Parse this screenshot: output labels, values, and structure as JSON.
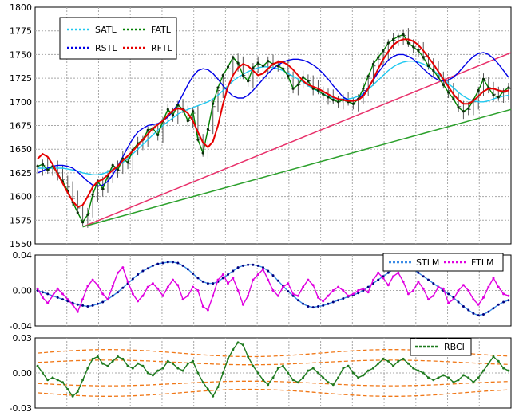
{
  "chart_data": [
    {
      "type": "line",
      "panel": "price",
      "ylim": [
        1550,
        1800
      ],
      "yticks": [
        "1800",
        "1775",
        "1750",
        "1725",
        "1700",
        "1675",
        "1650",
        "1625",
        "1600",
        "1575",
        "1550"
      ],
      "grid": true,
      "legend": "top-left",
      "xrange": [
        0,
        100
      ],
      "close": [
        1630,
        1633,
        1628,
        1632,
        1625,
        1618,
        1610,
        1598,
        1588,
        1575,
        1582,
        1600,
        1615,
        1608,
        1620,
        1632,
        1628,
        1640,
        1635,
        1648,
        1655,
        1660,
        1668,
        1672,
        1665,
        1678,
        1690,
        1685,
        1695,
        1692,
        1680,
        1688,
        1662,
        1648,
        1670,
        1695,
        1712,
        1725,
        1735,
        1745,
        1740,
        1728,
        1722,
        1735,
        1740,
        1738,
        1742,
        1740,
        1738,
        1735,
        1728,
        1715,
        1718,
        1725,
        1722,
        1715,
        1712,
        1708,
        1705,
        1702,
        1700,
        1702,
        1700,
        1698,
        1702,
        1712,
        1725,
        1738,
        1745,
        1752,
        1760,
        1765,
        1768,
        1770,
        1762,
        1758,
        1755,
        1748,
        1740,
        1735,
        1728,
        1720,
        1712,
        1705,
        1695,
        1690,
        1692,
        1700,
        1710,
        1722,
        1715,
        1708,
        1705,
        1710,
        1714
      ],
      "series": [
        {
          "name": "SATL",
          "color": "#1ec8f0",
          "values": [
            1630,
            1630,
            1630,
            1630,
            1630,
            1630,
            1629,
            1628,
            1627,
            1625,
            1624,
            1623,
            1623,
            1624,
            1626,
            1629,
            1632,
            1636,
            1640,
            1645,
            1650,
            1655,
            1660,
            1665,
            1670,
            1675,
            1679,
            1683,
            1687,
            1690,
            1692,
            1694,
            1696,
            1698,
            1700,
            1703,
            1707,
            1712,
            1717,
            1722,
            1726,
            1729,
            1732,
            1734,
            1736,
            1737,
            1737,
            1736,
            1735,
            1733,
            1730,
            1727,
            1724,
            1721,
            1717,
            1714,
            1711,
            1708,
            1706,
            1704,
            1703,
            1703,
            1703,
            1704,
            1706,
            1709,
            1713,
            1718,
            1723,
            1728,
            1733,
            1737,
            1740,
            1742,
            1743,
            1743,
            1742,
            1740,
            1737,
            1733,
            1729,
            1724,
            1719,
            1715,
            1710,
            1706,
            1703,
            1701,
            1700,
            1700,
            1701,
            1703,
            1705,
            1706,
            1707
          ]
        },
        {
          "name": "RSTL",
          "color": "#0000e6",
          "values": [
            1625,
            1627,
            1630,
            1632,
            1633,
            1633,
            1632,
            1630,
            1626,
            1621,
            1616,
            1612,
            1611,
            1612,
            1616,
            1623,
            1632,
            1642,
            1652,
            1661,
            1668,
            1672,
            1675,
            1676,
            1677,
            1680,
            1684,
            1690,
            1698,
            1708,
            1718,
            1727,
            1733,
            1735,
            1734,
            1730,
            1724,
            1717,
            1711,
            1706,
            1704,
            1704,
            1707,
            1712,
            1718,
            1724,
            1730,
            1735,
            1739,
            1742,
            1744,
            1745,
            1745,
            1744,
            1742,
            1739,
            1735,
            1730,
            1724,
            1717,
            1711,
            1705,
            1702,
            1701,
            1703,
            1708,
            1715,
            1723,
            1731,
            1738,
            1744,
            1748,
            1750,
            1750,
            1748,
            1745,
            1740,
            1735,
            1730,
            1726,
            1723,
            1722,
            1723,
            1726,
            1731,
            1737,
            1743,
            1748,
            1751,
            1752,
            1750,
            1746,
            1740,
            1733,
            1726
          ]
        },
        {
          "name": "FATL",
          "color": "#008000",
          "values": [
            1632,
            1634,
            1628,
            1632,
            1624,
            1616,
            1606,
            1594,
            1583,
            1573,
            1581,
            1602,
            1616,
            1608,
            1622,
            1633,
            1628,
            1640,
            1636,
            1649,
            1656,
            1660,
            1670,
            1672,
            1665,
            1680,
            1692,
            1686,
            1697,
            1692,
            1680,
            1690,
            1660,
            1646,
            1671,
            1698,
            1715,
            1728,
            1737,
            1747,
            1741,
            1728,
            1722,
            1736,
            1741,
            1738,
            1743,
            1740,
            1738,
            1735,
            1727,
            1714,
            1718,
            1726,
            1722,
            1714,
            1712,
            1708,
            1705,
            1702,
            1700,
            1702,
            1700,
            1698,
            1703,
            1714,
            1727,
            1740,
            1747,
            1754,
            1762,
            1766,
            1769,
            1771,
            1762,
            1758,
            1754,
            1747,
            1738,
            1733,
            1726,
            1718,
            1710,
            1703,
            1694,
            1690,
            1693,
            1702,
            1712,
            1724,
            1715,
            1707,
            1705,
            1711,
            1715
          ]
        },
        {
          "name": "RFTL",
          "color": "#e60000",
          "values": [
            1640,
            1645,
            1642,
            1634,
            1624,
            1614,
            1604,
            1595,
            1589,
            1591,
            1600,
            1610,
            1616,
            1618,
            1623,
            1628,
            1632,
            1638,
            1643,
            1648,
            1654,
            1660,
            1666,
            1672,
            1676,
            1680,
            1686,
            1691,
            1693,
            1692,
            1688,
            1680,
            1668,
            1657,
            1652,
            1658,
            1675,
            1698,
            1716,
            1728,
            1736,
            1740,
            1738,
            1733,
            1728,
            1730,
            1735,
            1740,
            1742,
            1742,
            1739,
            1734,
            1728,
            1722,
            1718,
            1716,
            1714,
            1711,
            1708,
            1705,
            1703,
            1702,
            1701,
            1701,
            1702,
            1706,
            1714,
            1724,
            1735,
            1745,
            1753,
            1760,
            1764,
            1766,
            1766,
            1764,
            1760,
            1754,
            1747,
            1740,
            1732,
            1724,
            1716,
            1708,
            1702,
            1698,
            1698,
            1701,
            1706,
            1711,
            1714,
            1714,
            1712,
            1711,
            1712
          ]
        }
      ],
      "trendlines": [
        {
          "color": "#e8306a",
          "x": [
            10,
            100
          ],
          "y": [
            1568,
            1752
          ]
        },
        {
          "color": "#2ca02c",
          "x": [
            10,
            100
          ],
          "y": [
            1568,
            1692
          ]
        }
      ]
    },
    {
      "type": "line",
      "panel": "oscillator",
      "ylim": [
        -0.04,
        0.04
      ],
      "yticks": [
        "0.04",
        "0.00",
        "-0.04"
      ],
      "grid": true,
      "legend": "top-right",
      "xrange": [
        0,
        100
      ],
      "series": [
        {
          "name": "STLM",
          "color": "#3c8ce6",
          "values": [
            0.0,
            -0.002,
            -0.004,
            -0.006,
            -0.008,
            -0.01,
            -0.012,
            -0.014,
            -0.016,
            -0.017,
            -0.018,
            -0.017,
            -0.015,
            -0.013,
            -0.01,
            -0.006,
            -0.002,
            0.003,
            0.008,
            0.013,
            0.018,
            0.022,
            0.025,
            0.028,
            0.03,
            0.031,
            0.032,
            0.032,
            0.031,
            0.028,
            0.024,
            0.019,
            0.014,
            0.01,
            0.008,
            0.008,
            0.01,
            0.014,
            0.018,
            0.022,
            0.026,
            0.028,
            0.029,
            0.029,
            0.028,
            0.026,
            0.022,
            0.017,
            0.011,
            0.005,
            -0.001,
            -0.006,
            -0.011,
            -0.015,
            -0.018,
            -0.019,
            -0.018,
            -0.017,
            -0.015,
            -0.013,
            -0.011,
            -0.009,
            -0.007,
            -0.005,
            -0.003,
            0.0,
            0.004,
            0.008,
            0.012,
            0.016,
            0.02,
            0.024,
            0.026,
            0.027,
            0.026,
            0.024,
            0.02,
            0.016,
            0.012,
            0.008,
            0.004,
            0.0,
            -0.004,
            -0.008,
            -0.013,
            -0.018,
            -0.022,
            -0.026,
            -0.028,
            -0.027,
            -0.024,
            -0.02,
            -0.016,
            -0.013,
            -0.011
          ]
        },
        {
          "name": "FTLM",
          "color": "#e000e0",
          "values": [
            0.002,
            -0.008,
            -0.014,
            -0.006,
            0.002,
            -0.004,
            -0.01,
            -0.016,
            -0.024,
            -0.01,
            0.005,
            0.012,
            0.006,
            -0.004,
            -0.01,
            0.005,
            0.02,
            0.026,
            0.01,
            -0.004,
            -0.012,
            -0.006,
            0.004,
            0.008,
            0.002,
            -0.006,
            0.004,
            0.012,
            0.006,
            -0.01,
            -0.006,
            0.004,
            0.0,
            -0.018,
            -0.022,
            -0.006,
            0.012,
            0.018,
            0.008,
            0.014,
            0.0,
            -0.016,
            -0.006,
            0.012,
            0.018,
            0.024,
            0.012,
            0.0,
            -0.006,
            0.004,
            0.008,
            -0.004,
            -0.006,
            0.004,
            0.012,
            0.006,
            -0.008,
            -0.012,
            -0.006,
            0.0,
            0.004,
            0.0,
            -0.006,
            -0.004,
            0.0,
            0.002,
            -0.002,
            0.012,
            0.02,
            0.014,
            0.006,
            0.016,
            0.02,
            0.01,
            -0.004,
            0.0,
            0.01,
            0.002,
            -0.01,
            -0.006,
            0.004,
            0.002,
            -0.014,
            -0.01,
            0.0,
            0.006,
            0.0,
            -0.01,
            -0.016,
            -0.008,
            0.004,
            0.014,
            0.004,
            -0.004,
            -0.006
          ]
        }
      ]
    },
    {
      "type": "line",
      "panel": "rbci",
      "ylim": [
        -0.03,
        0.03
      ],
      "yticks": [
        "0.03",
        "0.00",
        "-0.03"
      ],
      "grid": true,
      "legend": "top-right",
      "xrange": [
        0,
        100
      ],
      "series": [
        {
          "name": "RBCI",
          "color": "#1e7a1e",
          "values": [
            0.006,
            0.0,
            -0.006,
            -0.004,
            -0.006,
            -0.008,
            -0.014,
            -0.02,
            -0.016,
            -0.006,
            0.004,
            0.012,
            0.014,
            0.008,
            0.006,
            0.01,
            0.014,
            0.012,
            0.006,
            0.004,
            0.008,
            0.006,
            0.0,
            -0.002,
            0.002,
            0.004,
            0.01,
            0.008,
            0.004,
            0.002,
            0.008,
            0.01,
            0.0,
            -0.008,
            -0.014,
            -0.02,
            -0.012,
            0.0,
            0.012,
            0.02,
            0.026,
            0.024,
            0.014,
            0.006,
            0.0,
            -0.006,
            -0.01,
            -0.004,
            0.004,
            0.006,
            0.0,
            -0.006,
            -0.008,
            -0.004,
            0.002,
            0.004,
            0.0,
            -0.004,
            -0.008,
            -0.01,
            -0.004,
            0.004,
            0.006,
            0.0,
            -0.004,
            -0.002,
            0.002,
            0.004,
            0.008,
            0.012,
            0.01,
            0.006,
            0.01,
            0.012,
            0.008,
            0.004,
            0.002,
            0.0,
            -0.004,
            -0.006,
            -0.004,
            -0.002,
            -0.004,
            -0.008,
            -0.006,
            -0.002,
            -0.004,
            -0.008,
            -0.004,
            0.002,
            0.008,
            0.014,
            0.01,
            0.004,
            0.002
          ]
        }
      ],
      "bands": {
        "color": "#f07818",
        "levels": [
          {
            "base": 0.017,
            "amp": 0.003,
            "sign": 1
          },
          {
            "base": 0.009,
            "amp": 0.002,
            "sign": 1
          },
          {
            "base": -0.009,
            "amp": 0.002,
            "sign": -1
          },
          {
            "base": -0.017,
            "amp": 0.003,
            "sign": -1
          }
        ]
      }
    }
  ]
}
